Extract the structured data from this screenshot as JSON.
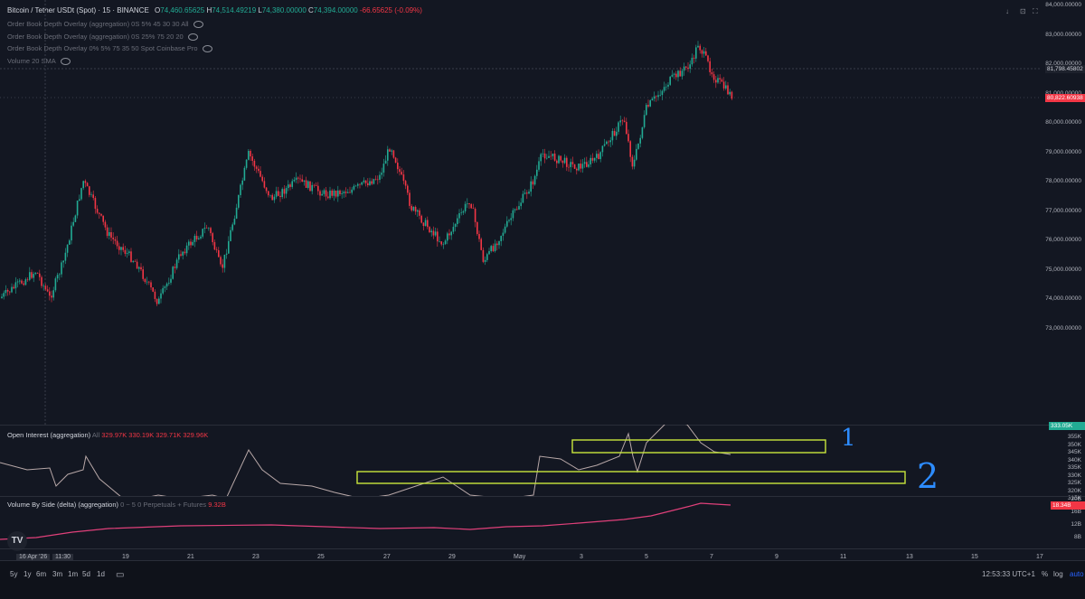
{
  "header": {
    "symbol": "Bitcoin / Tether USDt (Spot) · 15 · BINANCE",
    "open_label": "O",
    "open": "74,460.65625",
    "high_label": "H",
    "high": "74,514.49219",
    "low_label": "L",
    "low": "74,380.00000",
    "close_label": "C",
    "close": "74,394.00000",
    "change": "-66.65625 (-0.09%)"
  },
  "indicators": [
    "Order Book Depth Overlay (aggregation) 0S 5% 45 30 30 All",
    "Order Book Depth Overlay (aggregation) 0S 25% 75 20 20",
    "Order Book Depth Overlay 0% 5% 75 35 50 Spot Coinbase Pro",
    "Volume 20 SMA"
  ],
  "price_scale": {
    "ticks": [
      "84,000.00000",
      "83,000.00000",
      "82,000.00000",
      "81,000.00000",
      "80,000.00000",
      "79,000.00000",
      "78,000.00000",
      "77,000.00000",
      "76,000.00000",
      "75,000.00000",
      "74,000.00000",
      "73,000.00000"
    ],
    "crosshair_price": "81,798.45802",
    "last_price": "80,822.60938"
  },
  "oi_pane": {
    "label": "Open Interest (aggregation)",
    "scope": "All",
    "values": "329.97K  330.19K  329.71K  329.96K",
    "ticks": [
      "355K",
      "350K",
      "345K",
      "340K",
      "335K",
      "330K",
      "325K",
      "320K",
      "315K"
    ],
    "last_tag": "333.05K",
    "annotation_1": "1",
    "annotation_2": "2"
  },
  "vol_pane": {
    "label": "Volume By Side (delta) (aggregation)",
    "params": "0 ~ 5 0 Perpetuals + Futures",
    "value": "9.32B",
    "ticks": [
      "20B",
      "16B",
      "12B",
      "8B"
    ],
    "last_tag": "18.34B"
  },
  "time_axis": {
    "cursor_date": "16 Apr '26",
    "cursor_time": "11:30",
    "labels": [
      "19",
      "21",
      "23",
      "25",
      "27",
      "29",
      "May",
      "3",
      "5",
      "7",
      "9",
      "11",
      "13",
      "15",
      "17"
    ]
  },
  "toolbar": {
    "timeframes": [
      "5y",
      "1y",
      "6m",
      "3m",
      "1m",
      "5d",
      "1d"
    ],
    "clock": "12:53:33 UTC+1",
    "percent": "%",
    "log": "log",
    "auto": "auto"
  },
  "colors": {
    "bg": "#131722",
    "up": "#22ab94",
    "down": "#f23645",
    "oi_line": "#b8a8a8",
    "delta_line": "#e0407a",
    "highlight_box": "#c8e63c",
    "annotation_ink": "#2d8cff"
  }
}
